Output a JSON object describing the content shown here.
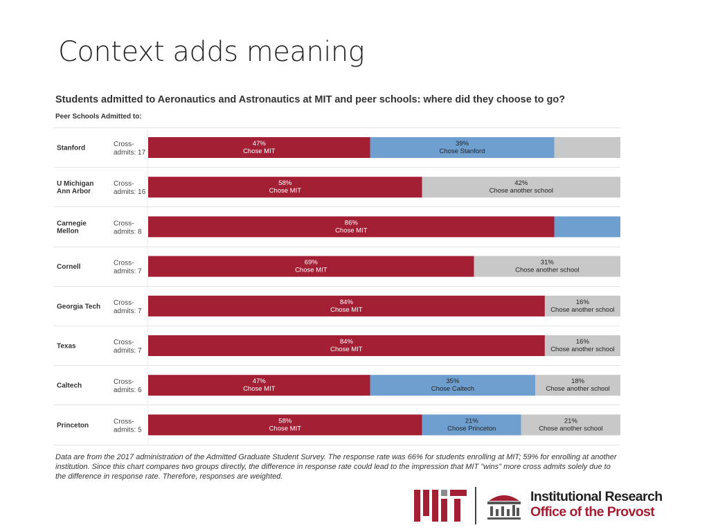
{
  "slide": {
    "title": "Context adds meaning"
  },
  "chart_data": {
    "type": "bar",
    "orientation": "horizontal",
    "stacked": true,
    "normalized_percent": true,
    "title": "Students admitted to Aeronautics and Astronautics at MIT and peer schools: where did they choose to go?",
    "row_header": "Peer Schools Admitted to:",
    "categories": [
      "Stanford",
      "U Michigan Ann Arbor",
      "Carnegie Mellon",
      "Cornell",
      "Georgia Tech",
      "Texas",
      "Caltech",
      "Princeton"
    ],
    "cross_admits": [
      "Cross-admits: 17",
      "Cross-admits: 16",
      "Cross-admits: 8",
      "Cross-admits: 7",
      "Cross-admits: 7",
      "Cross-admits: 7",
      "Cross-admits: 6",
      "Cross-admits: 5"
    ],
    "rows": [
      {
        "school": "Stanford",
        "segments": [
          {
            "kind": "mit",
            "value": 47,
            "pct": "47%",
            "label": "Chose MIT"
          },
          {
            "kind": "peer",
            "value": 39,
            "pct": "39%",
            "label": "Chose Stanford"
          },
          {
            "kind": "other",
            "value": 14,
            "pct": "",
            "label": ""
          }
        ]
      },
      {
        "school": "U Michigan Ann Arbor",
        "segments": [
          {
            "kind": "mit",
            "value": 58,
            "pct": "58%",
            "label": "Chose MIT"
          },
          {
            "kind": "other",
            "value": 42,
            "pct": "42%",
            "label": "Chose another school"
          }
        ]
      },
      {
        "school": "Carnegie Mellon",
        "segments": [
          {
            "kind": "mit",
            "value": 86,
            "pct": "86%",
            "label": "Chose MIT"
          },
          {
            "kind": "peer",
            "value": 14,
            "pct": "",
            "label": ""
          }
        ]
      },
      {
        "school": "Cornell",
        "segments": [
          {
            "kind": "mit",
            "value": 69,
            "pct": "69%",
            "label": "Chose MIT"
          },
          {
            "kind": "other",
            "value": 31,
            "pct": "31%",
            "label": "Chose another school"
          }
        ]
      },
      {
        "school": "Georgia Tech",
        "segments": [
          {
            "kind": "mit",
            "value": 84,
            "pct": "84%",
            "label": "Chose MIT"
          },
          {
            "kind": "other",
            "value": 16,
            "pct": "16%",
            "label": "Chose another school"
          }
        ]
      },
      {
        "school": "Texas",
        "segments": [
          {
            "kind": "mit",
            "value": 84,
            "pct": "84%",
            "label": "Chose MIT"
          },
          {
            "kind": "other",
            "value": 16,
            "pct": "16%",
            "label": "Chose another school"
          }
        ]
      },
      {
        "school": "Caltech",
        "segments": [
          {
            "kind": "mit",
            "value": 47,
            "pct": "47%",
            "label": "Chose MIT"
          },
          {
            "kind": "peer",
            "value": 35,
            "pct": "35%",
            "label": "Chose Caltech"
          },
          {
            "kind": "other",
            "value": 18,
            "pct": "18%",
            "label": "Chose another school"
          }
        ]
      },
      {
        "school": "Princeton",
        "segments": [
          {
            "kind": "mit",
            "value": 58,
            "pct": "58%",
            "label": "Chose MIT"
          },
          {
            "kind": "peer",
            "value": 21,
            "pct": "21%",
            "label": "Chose Princeton"
          },
          {
            "kind": "other",
            "value": 21,
            "pct": "21%",
            "label": "Chose another school"
          }
        ]
      }
    ],
    "colors": {
      "mit": "#a31f34",
      "peer": "#6e9fcf",
      "other": "#c8c8c8"
    },
    "xlim": [
      0,
      100
    ],
    "footnote": "Data are from the 2017 administration of the Admitted Graduate Student Survey. The response rate was 66% for students enrolling at MIT; 59% for enrolling at another institution. Since this chart compares two groups directly, the difference in response rate could lead to the impression that MIT \"wins\" more cross admits solely due to the difference in response rate. Therefore, responses are weighted."
  },
  "branding": {
    "mit_logo": "mit-wordmark-logo",
    "ir_icon": "building-columns-icon",
    "org_name": "Institutional Research",
    "office_name": "Office of the Provost",
    "colors": {
      "mit_red": "#a31f34",
      "mit_gray": "#8a8b8c",
      "dark": "#222222"
    }
  }
}
